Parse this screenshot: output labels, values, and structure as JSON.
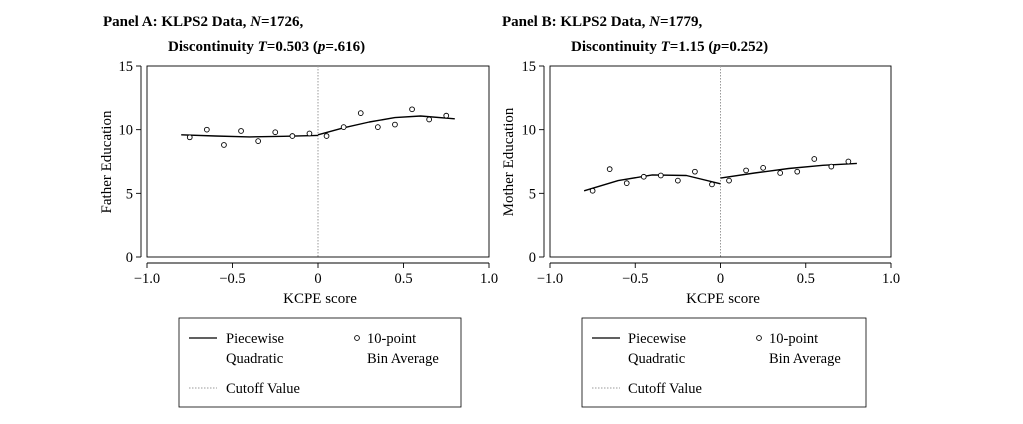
{
  "chart_data": [
    {
      "type": "scatter",
      "title_line1_pre": "Panel A: KLPS2 Data, ",
      "title_line1_n_label": "N",
      "title_line1_n_value": "=1726,",
      "title_line2_pre": "Discontinuity ",
      "title_line2_t_label": "T",
      "title_line2_t_value": "=0.503 (",
      "title_line2_p_label": "p",
      "title_line2_p_value": "=.616)",
      "xlabel": "KCPE score",
      "ylabel": "Father Education",
      "xlim": [
        -1.0,
        1.0
      ],
      "ylim": [
        0,
        15
      ],
      "xticks": [
        "−1.0",
        "−0.5",
        "0",
        "0.5",
        "1.0"
      ],
      "xtick_values": [
        -1.0,
        -0.5,
        0,
        0.5,
        1.0
      ],
      "yticks": [
        "0",
        "5",
        "10",
        "15"
      ],
      "ytick_values": [
        0,
        5,
        10,
        15
      ],
      "cutoff": 0,
      "bins": [
        {
          "x": -0.75,
          "y": 9.4
        },
        {
          "x": -0.65,
          "y": 10.0
        },
        {
          "x": -0.55,
          "y": 8.8
        },
        {
          "x": -0.45,
          "y": 9.9
        },
        {
          "x": -0.35,
          "y": 9.1
        },
        {
          "x": -0.25,
          "y": 9.8
        },
        {
          "x": -0.15,
          "y": 9.5
        },
        {
          "x": -0.05,
          "y": 9.7
        },
        {
          "x": 0.05,
          "y": 9.5
        },
        {
          "x": 0.15,
          "y": 10.2
        },
        {
          "x": 0.25,
          "y": 11.3
        },
        {
          "x": 0.35,
          "y": 10.2
        },
        {
          "x": 0.45,
          "y": 10.4
        },
        {
          "x": 0.55,
          "y": 11.6
        },
        {
          "x": 0.65,
          "y": 10.8
        },
        {
          "x": 0.75,
          "y": 11.1
        }
      ],
      "fit_left": [
        {
          "x": -0.8,
          "y": 9.6
        },
        {
          "x": -0.6,
          "y": 9.5
        },
        {
          "x": -0.4,
          "y": 9.43
        },
        {
          "x": -0.2,
          "y": 9.48
        },
        {
          "x": 0.0,
          "y": 9.55
        }
      ],
      "fit_right": [
        {
          "x": 0.0,
          "y": 9.6
        },
        {
          "x": 0.15,
          "y": 10.15
        },
        {
          "x": 0.3,
          "y": 10.6
        },
        {
          "x": 0.45,
          "y": 10.95
        },
        {
          "x": 0.6,
          "y": 11.07
        },
        {
          "x": 0.8,
          "y": 10.85
        }
      ]
    },
    {
      "type": "scatter",
      "title_line1_pre": "Panel B: KLPS2 Data, ",
      "title_line1_n_label": "N",
      "title_line1_n_value": "=1779,",
      "title_line2_pre": "Discontinuity ",
      "title_line2_t_label": "T",
      "title_line2_t_value": "=1.15 (",
      "title_line2_p_label": "p",
      "title_line2_p_value": "=0.252)",
      "xlabel": "KCPE score",
      "ylabel": "Mother Education",
      "xlim": [
        -1.0,
        1.0
      ],
      "ylim": [
        0,
        15
      ],
      "xticks": [
        "−1.0",
        "−0.5",
        "0",
        "0.5",
        "1.0"
      ],
      "xtick_values": [
        -1.0,
        -0.5,
        0,
        0.5,
        1.0
      ],
      "yticks": [
        "0",
        "5",
        "10",
        "15"
      ],
      "ytick_values": [
        0,
        5,
        10,
        15
      ],
      "cutoff": 0,
      "bins": [
        {
          "x": -0.75,
          "y": 5.2
        },
        {
          "x": -0.65,
          "y": 6.9
        },
        {
          "x": -0.55,
          "y": 5.8
        },
        {
          "x": -0.45,
          "y": 6.3
        },
        {
          "x": -0.35,
          "y": 6.4
        },
        {
          "x": -0.25,
          "y": 6.0
        },
        {
          "x": -0.15,
          "y": 6.7
        },
        {
          "x": -0.05,
          "y": 5.7
        },
        {
          "x": 0.05,
          "y": 6.0
        },
        {
          "x": 0.15,
          "y": 6.8
        },
        {
          "x": 0.25,
          "y": 7.0
        },
        {
          "x": 0.35,
          "y": 6.6
        },
        {
          "x": 0.45,
          "y": 6.7
        },
        {
          "x": 0.55,
          "y": 7.7
        },
        {
          "x": 0.65,
          "y": 7.1
        },
        {
          "x": 0.75,
          "y": 7.5
        }
      ],
      "fit_left": [
        {
          "x": -0.8,
          "y": 5.2
        },
        {
          "x": -0.6,
          "y": 6.0
        },
        {
          "x": -0.4,
          "y": 6.45
        },
        {
          "x": -0.2,
          "y": 6.4
        },
        {
          "x": 0.0,
          "y": 5.75
        }
      ],
      "fit_right": [
        {
          "x": 0.0,
          "y": 6.2
        },
        {
          "x": 0.2,
          "y": 6.6
        },
        {
          "x": 0.4,
          "y": 6.95
        },
        {
          "x": 0.6,
          "y": 7.2
        },
        {
          "x": 0.8,
          "y": 7.35
        }
      ]
    }
  ],
  "legend": {
    "fit_line1": "Piecewise",
    "fit_line2": "Quadratic",
    "bins_line1": "10-point",
    "bins_line2": "Bin Average",
    "cutoff_label": "Cutoff Value"
  }
}
